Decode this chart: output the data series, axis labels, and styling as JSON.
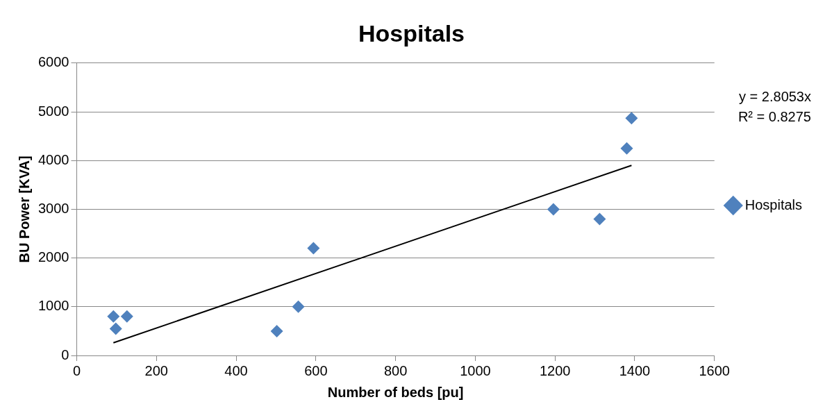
{
  "chart_data": {
    "type": "scatter",
    "title": "Hospitals",
    "xlabel": "Number of beds [pu]",
    "ylabel": "BU Power [KVA]",
    "xlim": [
      0,
      1600
    ],
    "xticks": [
      0,
      200,
      400,
      600,
      800,
      1000,
      1200,
      1400,
      1600
    ],
    "ylim": [
      0,
      6000
    ],
    "yticks": [
      0,
      1000,
      2000,
      3000,
      4000,
      5000,
      6000
    ],
    "grid": "y",
    "legend": "right",
    "marker": "diamond",
    "series": [
      {
        "name": "Hospitals",
        "type": "scatter",
        "color": "#4f81bd",
        "x": [
          92,
          98,
          126,
          502,
          556,
          594,
          1196,
          1312,
          1380,
          1392
        ],
        "values": [
          800,
          550,
          800,
          500,
          1000,
          2200,
          3000,
          2800,
          4250,
          4870
        ]
      },
      {
        "type": "line",
        "color": "#000000",
        "marker": "none",
        "x": [
          92,
          1392
        ],
        "values": [
          260,
          3900
        ]
      }
    ],
    "annotations": [
      "y = 2.8053x",
      "R² = 0.8275"
    ]
  }
}
